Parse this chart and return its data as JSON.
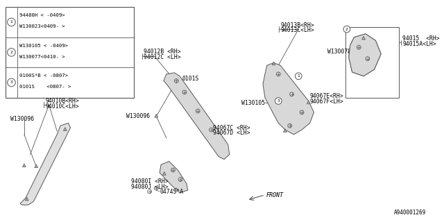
{
  "bg_color": "#ffffff",
  "text_color": "#000000",
  "line_color": "#555555",
  "fig_width": 6.4,
  "fig_height": 3.2,
  "dpi": 100,
  "legend_items": [
    [
      "94480H < -0409>",
      "W130023<0409- >"
    ],
    [
      "W130105 < -0409>",
      "W130077<0410- >"
    ],
    [
      "0100S*B < -0807>",
      "0101S    <0807- >"
    ]
  ],
  "bottom_label": "A940001269"
}
